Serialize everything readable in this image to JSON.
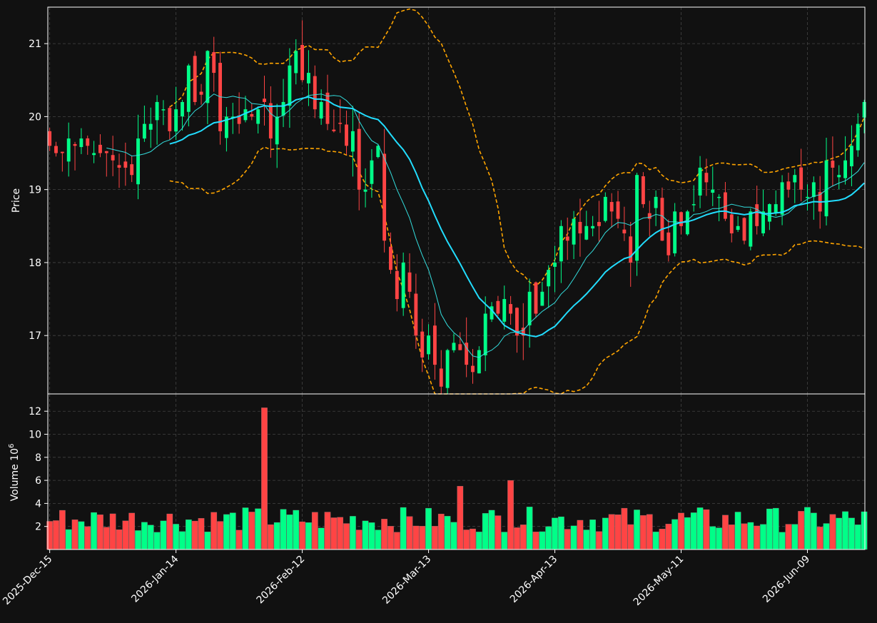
{
  "chart_data": {
    "type": "candlestick",
    "title": "",
    "ylabel_price": "Price",
    "ylabel_volume": "Volume",
    "volume_exponent_label": "10",
    "volume_exponent": "6",
    "date_ticks": [
      "2025-Dec-15",
      "2026-Jan-14",
      "2026-Feb-12",
      "2026-Mar-13",
      "2026-Apr-13",
      "2026-May-11",
      "2026-Jun-09"
    ],
    "price_ticks": [
      17,
      18,
      19,
      20,
      21
    ],
    "volume_ticks": [
      2,
      4,
      6,
      8,
      10,
      12
    ],
    "price_range": [
      16.2,
      21.5
    ],
    "volume_range": [
      0,
      13.5
    ],
    "grid": true,
    "colors": {
      "up": "#00ff88",
      "down": "#ff4444",
      "ma_fast": "#33dddd",
      "ma_slow": "#22ddff",
      "bollinger": "#ffa500",
      "background": "#111111",
      "grid": "#444444"
    },
    "close": [
      19.6,
      19.5,
      19.5,
      19.7,
      19.6,
      19.7,
      19.6,
      19.5,
      19.5,
      19.5,
      19.4,
      19.3,
      19.3,
      19.2,
      19.7,
      19.9,
      19.9,
      20.2,
      20.1,
      19.8,
      20.1,
      20.2,
      20.7,
      20.2,
      20.3,
      20.9,
      20.6,
      19.8,
      20.0,
      20.0,
      19.9,
      20.1,
      20.0,
      20.1,
      20.2,
      19.7,
      20.0,
      20.2,
      20.7,
      20.9,
      20.5,
      20.6,
      20.1,
      20.2,
      19.9,
      19.8,
      19.9,
      19.6,
      19.8,
      19.0,
      19.0,
      19.4,
      19.6,
      18.3,
      17.9,
      17.5,
      18.0,
      17.6,
      17.0,
      16.7,
      17.0,
      16.6,
      16.3,
      16.8,
      16.9,
      16.8,
      16.6,
      16.5,
      16.8,
      17.3,
      17.4,
      17.3,
      17.5,
      17.3,
      17.0,
      17.0,
      17.6,
      17.3,
      17.6,
      17.9,
      18.0,
      18.5,
      18.3,
      18.6,
      18.4,
      18.5,
      18.5,
      18.5,
      18.9,
      18.7,
      18.6,
      18.4,
      18.0,
      19.2,
      18.8,
      18.6,
      18.9,
      18.3,
      18.1,
      18.7,
      18.5,
      18.7,
      18.8,
      19.3,
      19.1,
      19.0,
      18.9,
      18.6,
      18.4,
      18.5,
      18.3,
      18.7,
      18.5,
      18.7,
      18.8,
      18.8,
      19.1,
      19.0,
      19.2,
      19.0,
      18.9,
      19.1,
      18.7,
      19.4,
      19.3,
      19.2,
      19.4,
      19.6,
      19.9,
      20.2
    ]
  }
}
